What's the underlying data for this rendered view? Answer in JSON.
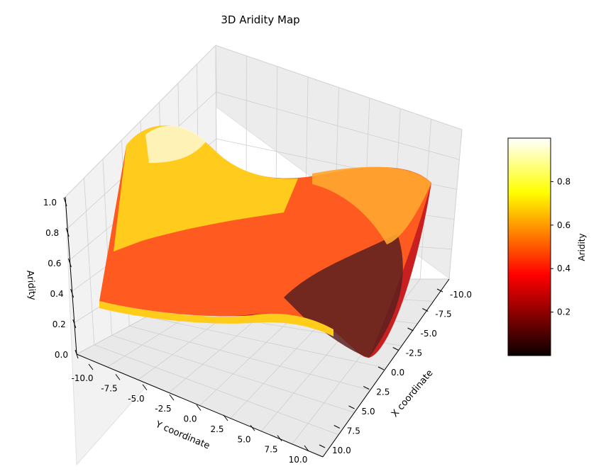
{
  "chart_data": {
    "type": "surface3d",
    "title": "3D Aridity Map",
    "xlabel": "X coordinate",
    "ylabel": "Y coordinate",
    "zlabel": "Aridity",
    "xlim": [
      -10,
      10
    ],
    "ylim": [
      -10,
      10
    ],
    "zlim": [
      0,
      1
    ],
    "x_ticks": [
      "-10.0",
      "-7.5",
      "-5.0",
      "-2.5",
      "0.0",
      "2.5",
      "5.0",
      "7.5",
      "10.0"
    ],
    "y_ticks": [
      "-10.0",
      "-7.5",
      "-5.0",
      "-2.5",
      "0.0",
      "2.5",
      "5.0",
      "7.5",
      "10.0"
    ],
    "z_ticks": [
      "0.0",
      "0.2",
      "0.4",
      "0.6",
      "0.8",
      "1.0"
    ],
    "colormap": "hot",
    "grid": true,
    "colorbar": {
      "label": "Aridity",
      "ticks": [
        "0.2",
        "0.4",
        "0.6",
        "0.8"
      ],
      "range": [
        0.0,
        1.0
      ],
      "placement": "right"
    },
    "surface_samples": {
      "x": [
        -10,
        -5,
        0,
        5,
        10
      ],
      "y": [
        -10,
        -5,
        0,
        5,
        10
      ],
      "z": [
        [
          0.4,
          0.6,
          0.75,
          0.95,
          0.98
        ],
        [
          0.45,
          0.5,
          0.6,
          0.7,
          0.75
        ],
        [
          0.35,
          0.4,
          0.45,
          0.5,
          0.55
        ],
        [
          0.25,
          0.2,
          0.35,
          0.55,
          0.6
        ],
        [
          0.55,
          0.3,
          0.05,
          0.3,
          0.6
        ]
      ]
    }
  }
}
